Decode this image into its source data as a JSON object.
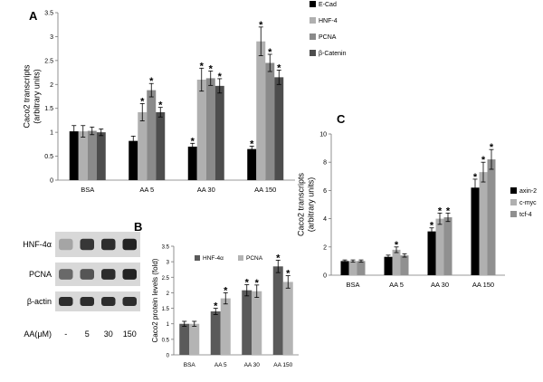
{
  "panel_labels": {
    "a": "A",
    "b": "B",
    "c": "C"
  },
  "star_symbol": "*",
  "colors": {
    "black": "#000000",
    "light_gray": "#b0b0b0",
    "mid_gray": "#8a8a8a",
    "dark_gray": "#4d4d4d",
    "panel_b_dark": "#5a5a5a",
    "panel_b_light": "#b4b4b4",
    "panel_c_mid": "#909090"
  },
  "western_blot": {
    "rows": [
      "HNF-4α",
      "PCNA",
      "β-actin"
    ],
    "x_label": "AA(μM)",
    "lanes": [
      "-",
      "5",
      "30",
      "150"
    ],
    "band_intensity": [
      [
        0.25,
        0.8,
        0.85,
        0.9
      ],
      [
        0.55,
        0.65,
        0.85,
        0.9
      ],
      [
        0.85,
        0.85,
        0.85,
        0.85
      ]
    ]
  },
  "chart_data": [
    {
      "panel": "A",
      "type": "bar",
      "categories": [
        "BSA",
        "AA 5",
        "AA 30",
        "AA 150"
      ],
      "ylabel": "Caco2  transcripts (arbitrary units)",
      "ylabel_lines": [
        "Caco2  transcripts",
        "(arbitrary units)"
      ],
      "ylim": [
        0,
        3.5
      ],
      "yticks": [
        "0",
        "0.5",
        "1",
        "1.5",
        "2",
        "2.5",
        "3",
        "3.5"
      ],
      "legend_position": "right",
      "series": [
        {
          "name": "E-Cad",
          "color": "#000000",
          "values": [
            1.02,
            0.82,
            0.7,
            0.65
          ],
          "errors": [
            0.12,
            0.1,
            0.07,
            0.06
          ],
          "significant": [
            false,
            false,
            true,
            true
          ]
        },
        {
          "name": "HNF-4",
          "color": "#b0b0b0",
          "values": [
            1.02,
            1.42,
            2.1,
            2.9
          ],
          "errors": [
            0.12,
            0.18,
            0.24,
            0.3
          ],
          "significant": [
            false,
            true,
            true,
            true
          ]
        },
        {
          "name": "PCNA",
          "color": "#8a8a8a",
          "values": [
            1.03,
            1.88,
            2.13,
            2.45
          ],
          "errors": [
            0.08,
            0.14,
            0.15,
            0.18
          ],
          "significant": [
            false,
            true,
            true,
            true
          ]
        },
        {
          "name": "β-Catenin",
          "color": "#4d4d4d",
          "values": [
            1.0,
            1.42,
            1.97,
            2.15
          ],
          "errors": [
            0.07,
            0.1,
            0.15,
            0.15
          ],
          "significant": [
            false,
            true,
            true,
            true
          ]
        }
      ]
    },
    {
      "panel": "B",
      "type": "bar",
      "categories": [
        "BSA",
        "AA 5",
        "AA 30",
        "AA 150"
      ],
      "ylabel": "Caco2 protein  levels  (fold)",
      "ylim": [
        0,
        3.5
      ],
      "yticks": [
        "0",
        "0.5",
        "1",
        "1.5",
        "2",
        "2.5",
        "3",
        "3.5"
      ],
      "legend_position": "top",
      "series": [
        {
          "name": "HNF-4α",
          "color": "#5a5a5a",
          "values": [
            1.0,
            1.4,
            2.08,
            2.85
          ],
          "errors": [
            0.08,
            0.1,
            0.18,
            0.2
          ],
          "significant": [
            false,
            true,
            true,
            true
          ]
        },
        {
          "name": "PCNA",
          "color": "#b4b4b4",
          "values": [
            1.0,
            1.82,
            2.05,
            2.35
          ],
          "errors": [
            0.08,
            0.18,
            0.2,
            0.2
          ],
          "significant": [
            false,
            true,
            true,
            true
          ]
        }
      ]
    },
    {
      "panel": "C",
      "type": "bar",
      "categories": [
        "BSA",
        "AA 5",
        "AA 30",
        "AA 150"
      ],
      "ylabel": "Caco2  transcripts (arbitrary units)",
      "ylabel_lines": [
        "Caco2  transcripts",
        "(arbitrary units)"
      ],
      "ylim": [
        0,
        10
      ],
      "yticks": [
        "0",
        "2",
        "4",
        "6",
        "8",
        "10"
      ],
      "legend_position": "right",
      "series": [
        {
          "name": "axin-2",
          "color": "#000000",
          "values": [
            1.0,
            1.3,
            3.1,
            6.2
          ],
          "errors": [
            0.08,
            0.12,
            0.25,
            0.6
          ],
          "significant": [
            false,
            false,
            true,
            true
          ]
        },
        {
          "name": "c-myc",
          "color": "#b0b0b0",
          "values": [
            1.0,
            1.8,
            4.0,
            7.3
          ],
          "errors": [
            0.08,
            0.2,
            0.4,
            0.7
          ],
          "significant": [
            false,
            true,
            true,
            true
          ]
        },
        {
          "name": "tcf-4",
          "color": "#909090",
          "values": [
            1.0,
            1.4,
            4.1,
            8.2
          ],
          "errors": [
            0.08,
            0.12,
            0.3,
            0.7
          ],
          "significant": [
            false,
            false,
            true,
            true
          ]
        }
      ]
    }
  ]
}
